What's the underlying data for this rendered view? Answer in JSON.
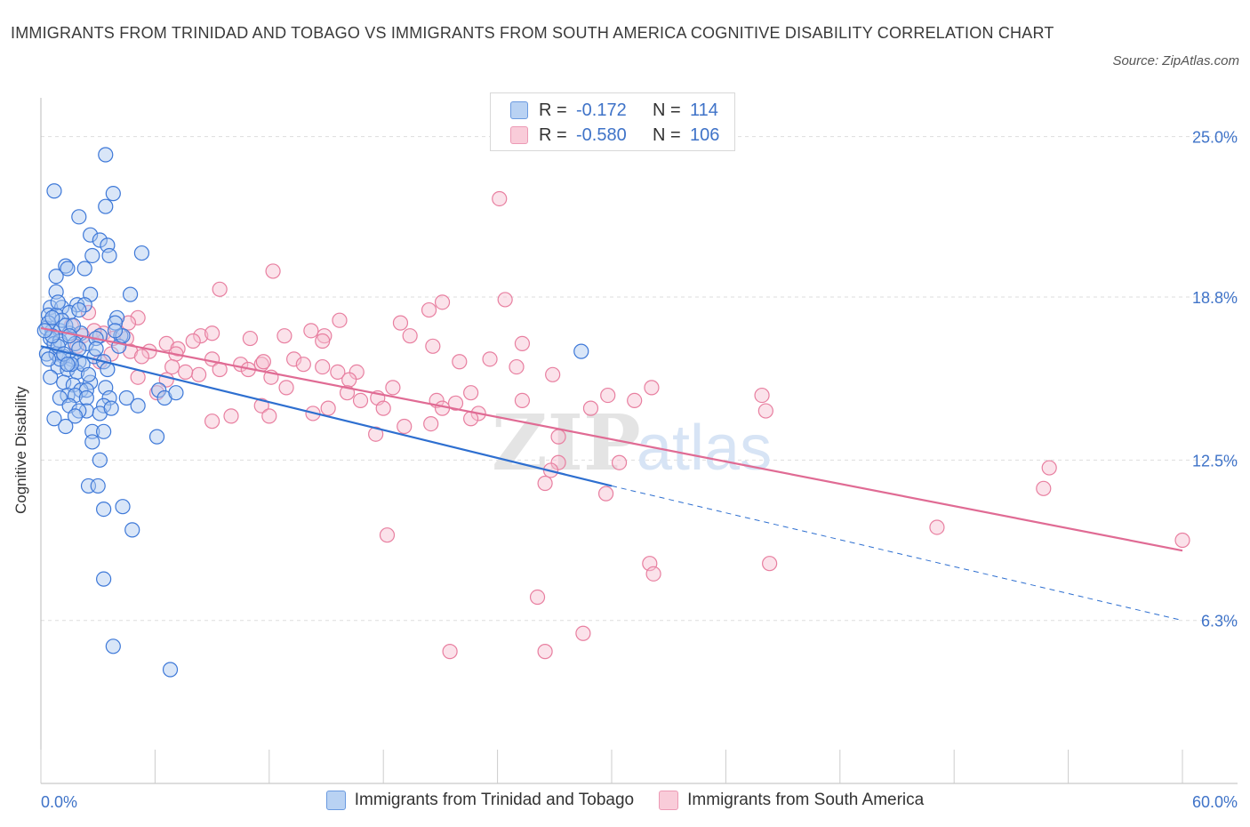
{
  "title": "IMMIGRANTS FROM TRINIDAD AND TOBAGO VS IMMIGRANTS FROM SOUTH AMERICA COGNITIVE DISABILITY CORRELATION CHART",
  "source": "Source: ZipAtlas.com",
  "watermark": {
    "zip": "ZIP",
    "atlas": "atlas"
  },
  "legend": {
    "rows": [
      {
        "r_label": "R =",
        "r_value": "-0.172",
        "n_label": "N =",
        "n_value": "114"
      },
      {
        "r_label": "R =",
        "r_value": "-0.580",
        "n_label": "N =",
        "n_value": "106"
      }
    ]
  },
  "colors": {
    "blue_fill": "#aac8f0",
    "blue_stroke": "#3d78d8",
    "blue_line": "#2e6fd0",
    "pink_fill": "#f7bfd0",
    "pink_stroke": "#e87fa0",
    "pink_line": "#e06b94",
    "tick_label": "#3f73c8",
    "grid": "#dddddd"
  },
  "chart_data": {
    "type": "scatter",
    "title": "IMMIGRANTS FROM TRINIDAD AND TOBAGO VS IMMIGRANTS FROM SOUTH AMERICA COGNITIVE DISABILITY CORRELATION CHART",
    "xlabel": "",
    "ylabel": "Cognitive Disability",
    "xlim": [
      0,
      60
    ],
    "ylim": [
      0,
      26.5
    ],
    "x_tick_labels": [
      "0.0%",
      "60.0%"
    ],
    "y_ticks": [
      6.3,
      12.5,
      18.8,
      25.0
    ],
    "y_tick_labels": [
      "6.3%",
      "12.5%",
      "18.8%",
      "25.0%"
    ],
    "grid": "horizontal dashed",
    "legend_position": "top-center",
    "series": [
      {
        "name": "Immigrants from Trinidad and Tobago",
        "color": "blue",
        "trend": {
          "x": [
            0,
            30
          ],
          "y": [
            16.9,
            11.5
          ],
          "extended_x": [
            60
          ],
          "extended_y": [
            6.3
          ]
        },
        "points": [
          [
            3.4,
            24.3
          ],
          [
            0.7,
            22.9
          ],
          [
            3.8,
            22.8
          ],
          [
            3.4,
            22.3
          ],
          [
            2.0,
            21.9
          ],
          [
            2.6,
            21.2
          ],
          [
            3.1,
            21.0
          ],
          [
            3.5,
            20.8
          ],
          [
            5.3,
            20.5
          ],
          [
            2.7,
            20.4
          ],
          [
            3.6,
            20.4
          ],
          [
            1.3,
            20.0
          ],
          [
            1.4,
            19.9
          ],
          [
            2.3,
            19.9
          ],
          [
            0.8,
            19.6
          ],
          [
            0.8,
            19.0
          ],
          [
            2.6,
            18.9
          ],
          [
            4.7,
            18.9
          ],
          [
            0.5,
            18.4
          ],
          [
            1.1,
            18.4
          ],
          [
            1.9,
            18.5
          ],
          [
            2.3,
            18.5
          ],
          [
            0.4,
            18.1
          ],
          [
            0.8,
            18.1
          ],
          [
            1.5,
            18.2
          ],
          [
            2.0,
            18.3
          ],
          [
            4.0,
            18.0
          ],
          [
            3.9,
            17.8
          ],
          [
            0.3,
            17.6
          ],
          [
            0.6,
            17.5
          ],
          [
            1.0,
            17.5
          ],
          [
            1.5,
            17.4
          ],
          [
            2.1,
            17.4
          ],
          [
            3.1,
            17.3
          ],
          [
            4.2,
            17.3
          ],
          [
            0.5,
            17.2
          ],
          [
            0.7,
            17.0
          ],
          [
            1.0,
            17.1
          ],
          [
            1.8,
            17.0
          ],
          [
            2.4,
            17.0
          ],
          [
            4.1,
            16.9
          ],
          [
            0.3,
            16.6
          ],
          [
            0.8,
            16.6
          ],
          [
            1.2,
            16.5
          ],
          [
            1.6,
            16.4
          ],
          [
            2.0,
            16.3
          ],
          [
            2.8,
            16.5
          ],
          [
            3.3,
            16.3
          ],
          [
            28.4,
            16.7
          ],
          [
            0.9,
            16.1
          ],
          [
            1.4,
            16.0
          ],
          [
            1.9,
            15.9
          ],
          [
            3.5,
            16.0
          ],
          [
            0.5,
            15.7
          ],
          [
            1.2,
            15.5
          ],
          [
            1.7,
            15.4
          ],
          [
            2.6,
            15.5
          ],
          [
            2.1,
            15.2
          ],
          [
            2.4,
            15.2
          ],
          [
            3.4,
            15.3
          ],
          [
            6.2,
            15.2
          ],
          [
            1.4,
            15.0
          ],
          [
            1.8,
            15.0
          ],
          [
            1.0,
            14.9
          ],
          [
            2.4,
            14.9
          ],
          [
            3.6,
            14.9
          ],
          [
            4.5,
            14.9
          ],
          [
            6.5,
            14.9
          ],
          [
            7.1,
            15.1
          ],
          [
            1.5,
            14.6
          ],
          [
            2.4,
            14.4
          ],
          [
            3.3,
            14.6
          ],
          [
            5.1,
            14.6
          ],
          [
            3.1,
            14.3
          ],
          [
            2.0,
            14.4
          ],
          [
            1.8,
            14.2
          ],
          [
            0.7,
            14.1
          ],
          [
            3.7,
            14.5
          ],
          [
            1.3,
            13.8
          ],
          [
            2.7,
            13.6
          ],
          [
            3.3,
            13.6
          ],
          [
            6.1,
            13.4
          ],
          [
            2.7,
            13.2
          ],
          [
            3.1,
            12.5
          ],
          [
            2.5,
            11.5
          ],
          [
            3.0,
            11.5
          ],
          [
            3.3,
            10.6
          ],
          [
            4.3,
            10.7
          ],
          [
            4.8,
            9.8
          ],
          [
            3.3,
            7.9
          ],
          [
            3.8,
            5.3
          ],
          [
            6.8,
            4.4
          ],
          [
            0.9,
            16.9
          ],
          [
            1.1,
            17.9
          ],
          [
            1.3,
            17.7
          ],
          [
            0.4,
            17.8
          ],
          [
            1.7,
            17.7
          ],
          [
            2.2,
            16.2
          ],
          [
            0.6,
            17.3
          ],
          [
            1.6,
            16.2
          ],
          [
            2.9,
            17.2
          ],
          [
            1.0,
            16.4
          ],
          [
            0.2,
            17.5
          ],
          [
            0.9,
            18.6
          ],
          [
            4.3,
            17.3
          ],
          [
            1.5,
            17.3
          ],
          [
            2.0,
            16.8
          ],
          [
            0.4,
            16.4
          ],
          [
            1.2,
            16.6
          ],
          [
            2.5,
            15.8
          ],
          [
            0.6,
            18.0
          ],
          [
            3.9,
            17.5
          ],
          [
            1.4,
            16.2
          ],
          [
            2.9,
            16.8
          ]
        ]
      },
      {
        "name": "Immigrants from South America",
        "color": "pink",
        "trend": {
          "x": [
            0,
            60
          ],
          "y": [
            17.6,
            9.0
          ]
        },
        "points": [
          [
            24.1,
            22.6
          ],
          [
            12.2,
            19.8
          ],
          [
            9.4,
            19.1
          ],
          [
            24.4,
            18.7
          ],
          [
            21.1,
            18.6
          ],
          [
            20.4,
            18.3
          ],
          [
            2.5,
            18.2
          ],
          [
            5.1,
            18.0
          ],
          [
            15.7,
            17.9
          ],
          [
            1.6,
            17.7
          ],
          [
            3.3,
            17.4
          ],
          [
            14.2,
            17.5
          ],
          [
            14.9,
            17.3
          ],
          [
            19.4,
            17.3
          ],
          [
            8.4,
            17.3
          ],
          [
            4.5,
            17.2
          ],
          [
            2.2,
            17.3
          ],
          [
            11.0,
            17.2
          ],
          [
            12.8,
            17.3
          ],
          [
            14.8,
            17.1
          ],
          [
            3.8,
            17.2
          ],
          [
            8.0,
            17.1
          ],
          [
            6.6,
            17.0
          ],
          [
            7.2,
            16.8
          ],
          [
            25.3,
            17.0
          ],
          [
            3.7,
            16.6
          ],
          [
            4.7,
            16.7
          ],
          [
            20.6,
            16.9
          ],
          [
            5.7,
            16.7
          ],
          [
            7.1,
            16.6
          ],
          [
            13.3,
            16.4
          ],
          [
            22.0,
            16.3
          ],
          [
            23.6,
            16.4
          ],
          [
            9.0,
            16.4
          ],
          [
            10.5,
            16.2
          ],
          [
            11.6,
            16.2
          ],
          [
            25.0,
            16.1
          ],
          [
            14.8,
            16.1
          ],
          [
            5.3,
            16.5
          ],
          [
            6.9,
            16.1
          ],
          [
            9.4,
            16.0
          ],
          [
            10.9,
            16.0
          ],
          [
            15.6,
            15.9
          ],
          [
            16.6,
            15.9
          ],
          [
            8.3,
            15.8
          ],
          [
            26.9,
            15.8
          ],
          [
            6.6,
            15.6
          ],
          [
            5.1,
            15.7
          ],
          [
            16.2,
            15.6
          ],
          [
            12.9,
            15.3
          ],
          [
            18.5,
            15.3
          ],
          [
            32.1,
            15.3
          ],
          [
            22.6,
            15.1
          ],
          [
            29.8,
            15.0
          ],
          [
            17.7,
            14.9
          ],
          [
            20.8,
            14.8
          ],
          [
            31.2,
            14.8
          ],
          [
            37.9,
            15.0
          ],
          [
            16.8,
            14.8
          ],
          [
            18.0,
            14.5
          ],
          [
            25.3,
            14.8
          ],
          [
            11.6,
            14.6
          ],
          [
            21.8,
            14.7
          ],
          [
            14.3,
            14.3
          ],
          [
            23.0,
            14.3
          ],
          [
            28.9,
            14.5
          ],
          [
            10.0,
            14.2
          ],
          [
            12.0,
            14.2
          ],
          [
            22.6,
            14.1
          ],
          [
            38.1,
            14.4
          ],
          [
            9.0,
            14.0
          ],
          [
            20.5,
            13.9
          ],
          [
            17.6,
            13.5
          ],
          [
            27.2,
            13.4
          ],
          [
            19.1,
            13.8
          ],
          [
            27.2,
            12.4
          ],
          [
            26.8,
            12.1
          ],
          [
            26.5,
            11.6
          ],
          [
            30.4,
            12.4
          ],
          [
            53.0,
            12.2
          ],
          [
            52.7,
            11.4
          ],
          [
            29.7,
            11.2
          ],
          [
            47.1,
            9.9
          ],
          [
            60.0,
            9.4
          ],
          [
            18.2,
            9.6
          ],
          [
            32.0,
            8.5
          ],
          [
            38.3,
            8.5
          ],
          [
            32.2,
            8.1
          ],
          [
            26.1,
            7.2
          ],
          [
            26.5,
            5.1
          ],
          [
            28.5,
            5.8
          ],
          [
            21.5,
            5.1
          ],
          [
            9.0,
            17.4
          ],
          [
            11.7,
            16.3
          ],
          [
            6.1,
            15.1
          ],
          [
            7.6,
            15.9
          ],
          [
            13.8,
            16.2
          ],
          [
            3.1,
            16.3
          ],
          [
            1.9,
            16.9
          ],
          [
            12.1,
            15.7
          ],
          [
            4.6,
            17.8
          ],
          [
            18.9,
            17.8
          ],
          [
            2.8,
            17.5
          ],
          [
            15.1,
            14.5
          ],
          [
            16.1,
            15.1
          ],
          [
            21.1,
            14.5
          ]
        ]
      }
    ]
  }
}
